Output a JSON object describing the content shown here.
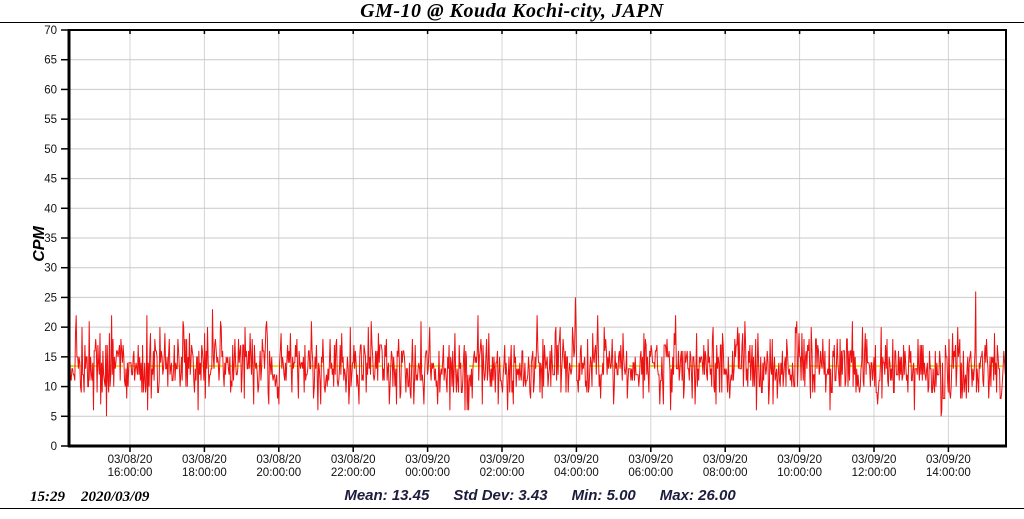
{
  "chart_data": {
    "type": "line",
    "title": "GM-10 @ Kouda Kochi-city, JAPN",
    "ylabel": "CPM",
    "xlabel": "",
    "ylim": [
      0,
      70
    ],
    "y_ticks": [
      0,
      5,
      10,
      15,
      20,
      25,
      30,
      35,
      40,
      45,
      50,
      55,
      60,
      65,
      70
    ],
    "grid": true,
    "legend": "none",
    "x_ticks": [
      {
        "date": "03/08/20",
        "time": "16:00:00"
      },
      {
        "date": "03/08/20",
        "time": "18:00:00"
      },
      {
        "date": "03/08/20",
        "time": "20:00:00"
      },
      {
        "date": "03/08/20",
        "time": "22:00:00"
      },
      {
        "date": "03/09/20",
        "time": "00:00:00"
      },
      {
        "date": "03/09/20",
        "time": "02:00:00"
      },
      {
        "date": "03/09/20",
        "time": "04:00:00"
      },
      {
        "date": "03/09/20",
        "time": "06:00:00"
      },
      {
        "date": "03/09/20",
        "time": "08:00:00"
      },
      {
        "date": "03/09/20",
        "time": "10:00:00"
      },
      {
        "date": "03/09/20",
        "time": "12:00:00"
      },
      {
        "date": "03/09/20",
        "time": "14:00:00"
      }
    ],
    "series": [
      {
        "name": "GM-10 counts per minute",
        "color": "#ee1111",
        "points": 1300,
        "mean": 13.45,
        "std_dev": 3.43,
        "min": 5.0,
        "max": 26.0
      }
    ],
    "mean_line": {
      "value": 13.45,
      "color_solid": "#e3d900",
      "color_dashed": "#00b400"
    }
  },
  "footer": {
    "time": "15:29",
    "date": "2020/03/09",
    "stats": {
      "mean": "Mean: 13.45",
      "std_dev": "Std Dev: 3.43",
      "min": "Min: 5.00",
      "max": "Max: 26.00"
    }
  },
  "colors": {
    "trace": "#ee1111",
    "grid_h": "#c9c9c9",
    "grid_v": "#d4d4d4",
    "axis": "#000000",
    "tick_text": "#111111",
    "stats_text": "#1c1c3c"
  }
}
